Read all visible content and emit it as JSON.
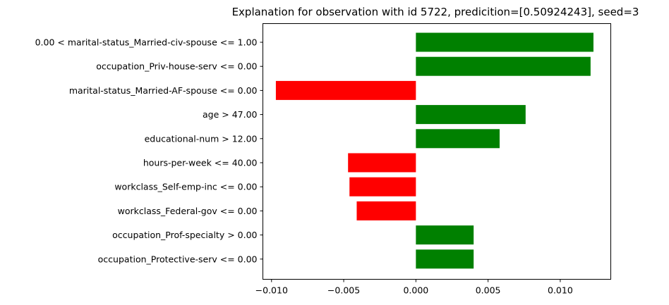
{
  "chart_data": {
    "type": "bar",
    "orientation": "horizontal",
    "title": "Explanation for observation with id 5722, predicition=[0.50924243], seed=3",
    "xlabel": "",
    "ylabel": "",
    "xlim": [
      -0.0106,
      0.0135
    ],
    "xticks": [
      -0.01,
      -0.005,
      0.0,
      0.005,
      0.01
    ],
    "xtick_labels": [
      "−0.010",
      "−0.005",
      "0.000",
      "0.005",
      "0.010"
    ],
    "grid": false,
    "positive_color": "#008000",
    "negative_color": "#ff0000",
    "categories": [
      "0.00 < marital-status_Married-civ-spouse <= 1.00",
      "occupation_Priv-house-serv <= 0.00",
      "marital-status_Married-AF-spouse <= 0.00",
      "age > 47.00",
      "educational-num > 12.00",
      "hours-per-week <= 40.00",
      "workclass_Self-emp-inc <= 0.00",
      "workclass_Federal-gov <= 0.00",
      "occupation_Prof-specialty > 0.00",
      "occupation_Protective-serv <= 0.00"
    ],
    "values": [
      0.0123,
      0.0121,
      -0.0097,
      0.0076,
      0.0058,
      -0.0047,
      -0.0046,
      -0.0041,
      0.004,
      0.004
    ]
  }
}
